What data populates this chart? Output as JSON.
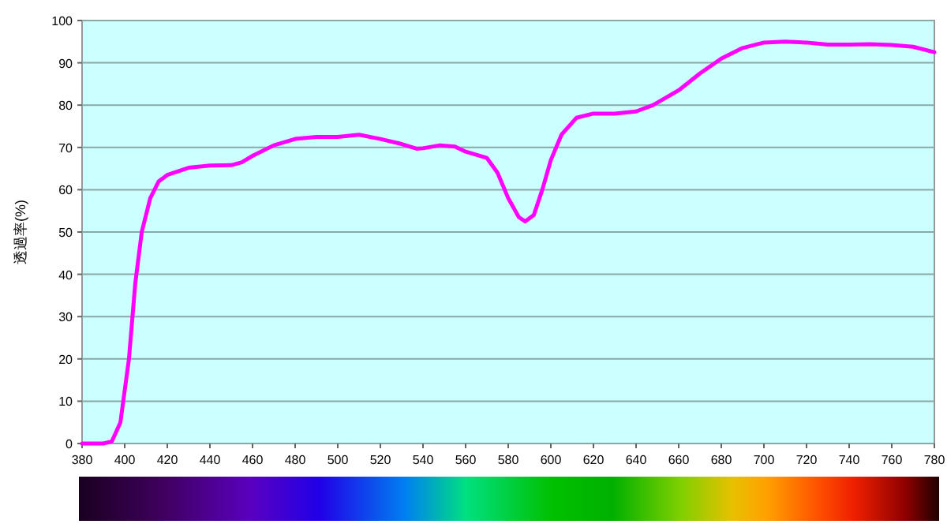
{
  "chart_data": {
    "type": "line",
    "ylabel": "透過率(%)",
    "series": [
      {
        "color": "#ff00ff",
        "x": [
          380,
          390,
          394,
          398,
          402,
          405,
          408,
          412,
          416,
          420,
          430,
          440,
          450,
          455,
          460,
          470,
          480,
          490,
          500,
          510,
          520,
          530,
          537,
          540,
          548,
          555,
          560,
          570,
          575,
          580,
          585,
          588,
          592,
          596,
          600,
          605,
          612,
          620,
          630,
          640,
          648,
          660,
          670,
          680,
          690,
          700,
          710,
          720,
          730,
          740,
          750,
          760,
          770,
          780
        ],
        "values": [
          0,
          0,
          0.5,
          5,
          20,
          38,
          50,
          58,
          62,
          63.5,
          65.2,
          65.7,
          65.8,
          66.5,
          68,
          70.5,
          72,
          72.5,
          72.5,
          73,
          72,
          70.8,
          69.7,
          69.8,
          70.5,
          70.2,
          69,
          67.5,
          64,
          58,
          53.5,
          52.5,
          54,
          60,
          67,
          73,
          77,
          78,
          78,
          78.5,
          80,
          83.5,
          87.5,
          91,
          93.5,
          94.8,
          95,
          94.8,
          94.3,
          94.3,
          94.4,
          94.2,
          93.8,
          92.5
        ]
      }
    ],
    "xlim": [
      380,
      780
    ],
    "xticks": [
      380,
      400,
      420,
      440,
      460,
      480,
      500,
      520,
      540,
      560,
      580,
      600,
      620,
      640,
      660,
      680,
      700,
      720,
      740,
      760,
      780
    ],
    "ylim": [
      0,
      100
    ],
    "yticks": [
      0,
      10,
      20,
      30,
      40,
      50,
      60,
      70,
      80,
      90,
      100
    ],
    "grid": "y",
    "marker": "none",
    "line_style": "solid"
  }
}
